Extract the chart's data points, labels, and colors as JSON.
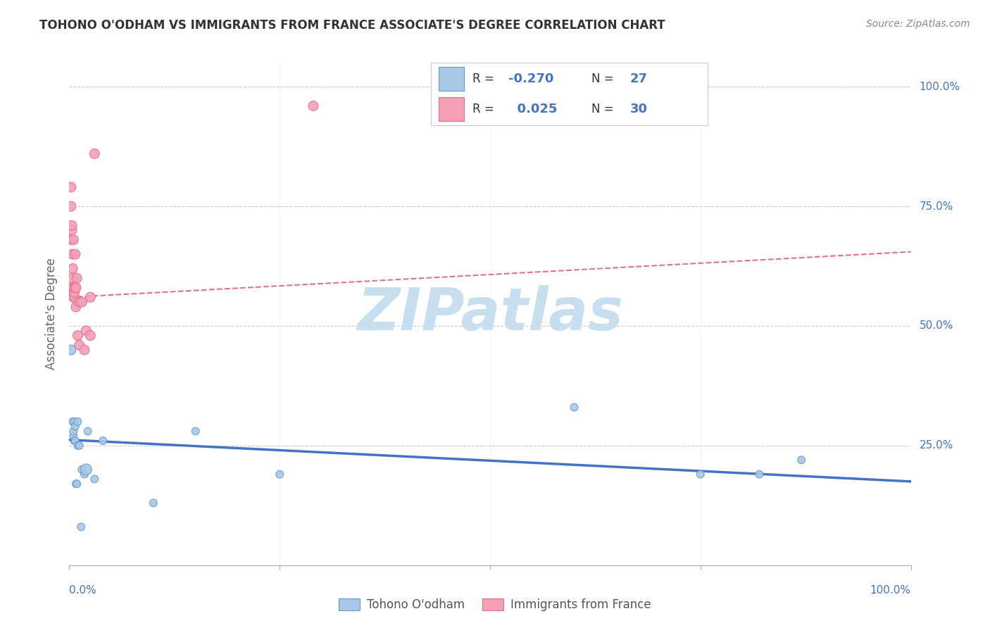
{
  "title": "TOHONO O'ODHAM VS IMMIGRANTS FROM FRANCE ASSOCIATE'S DEGREE CORRELATION CHART",
  "source": "Source: ZipAtlas.com",
  "ylabel": "Associate's Degree",
  "legend_label_blue": "Tohono O'odham",
  "legend_label_pink": "Immigrants from France",
  "blue_color": "#A8C8E8",
  "pink_color": "#F4A0B5",
  "blue_edge_color": "#6699CC",
  "pink_edge_color": "#E07090",
  "blue_line_color": "#4472C4",
  "pink_line_color": "#E07090",
  "watermark_color": "#C8DFF0",
  "blue_scatter_x": [
    0.002,
    0.004,
    0.005,
    0.005,
    0.006,
    0.006,
    0.007,
    0.007,
    0.008,
    0.009,
    0.01,
    0.01,
    0.012,
    0.014,
    0.015,
    0.018,
    0.02,
    0.022,
    0.03,
    0.04,
    0.1,
    0.15,
    0.25,
    0.6,
    0.75,
    0.82,
    0.87
  ],
  "blue_scatter_y": [
    0.45,
    0.3,
    0.27,
    0.28,
    0.26,
    0.3,
    0.26,
    0.29,
    0.17,
    0.17,
    0.25,
    0.3,
    0.25,
    0.08,
    0.2,
    0.19,
    0.2,
    0.28,
    0.18,
    0.26,
    0.13,
    0.28,
    0.19,
    0.33,
    0.19,
    0.19,
    0.22
  ],
  "blue_scatter_sizes": [
    100,
    60,
    60,
    60,
    60,
    60,
    60,
    60,
    60,
    60,
    60,
    60,
    60,
    60,
    60,
    60,
    130,
    60,
    60,
    60,
    60,
    60,
    60,
    60,
    60,
    60,
    60
  ],
  "pink_scatter_x": [
    0.001,
    0.002,
    0.002,
    0.003,
    0.003,
    0.003,
    0.004,
    0.004,
    0.004,
    0.004,
    0.005,
    0.005,
    0.005,
    0.006,
    0.006,
    0.007,
    0.007,
    0.008,
    0.008,
    0.009,
    0.01,
    0.012,
    0.012,
    0.015,
    0.018,
    0.02,
    0.025,
    0.025,
    0.03,
    0.29
  ],
  "pink_scatter_y": [
    0.57,
    0.75,
    0.79,
    0.68,
    0.7,
    0.71,
    0.58,
    0.6,
    0.62,
    0.65,
    0.56,
    0.58,
    0.68,
    0.56,
    0.57,
    0.58,
    0.65,
    0.54,
    0.58,
    0.6,
    0.48,
    0.46,
    0.55,
    0.55,
    0.45,
    0.49,
    0.48,
    0.56,
    0.86,
    0.96
  ],
  "pink_scatter_sizes": [
    200,
    100,
    100,
    100,
    100,
    100,
    100,
    100,
    100,
    100,
    100,
    100,
    100,
    100,
    100,
    100,
    100,
    100,
    100,
    100,
    100,
    100,
    100,
    100,
    100,
    100,
    100,
    100,
    100,
    100
  ],
  "blue_line_x": [
    0.0,
    1.0
  ],
  "blue_line_y_start": 0.262,
  "blue_line_y_end": 0.175,
  "pink_line_x": [
    0.0,
    1.0
  ],
  "pink_line_y_start": 0.56,
  "pink_line_y_end": 0.655,
  "background_color": "#FFFFFF",
  "grid_color": "#CCCCCC",
  "xlim": [
    0.0,
    1.0
  ],
  "ylim": [
    0.0,
    1.05
  ],
  "right_ytick_values": [
    0.25,
    0.5,
    0.75,
    1.0
  ],
  "right_ytick_labels": [
    "25.0%",
    "50.0%",
    "75.0%",
    "100.0%"
  ]
}
